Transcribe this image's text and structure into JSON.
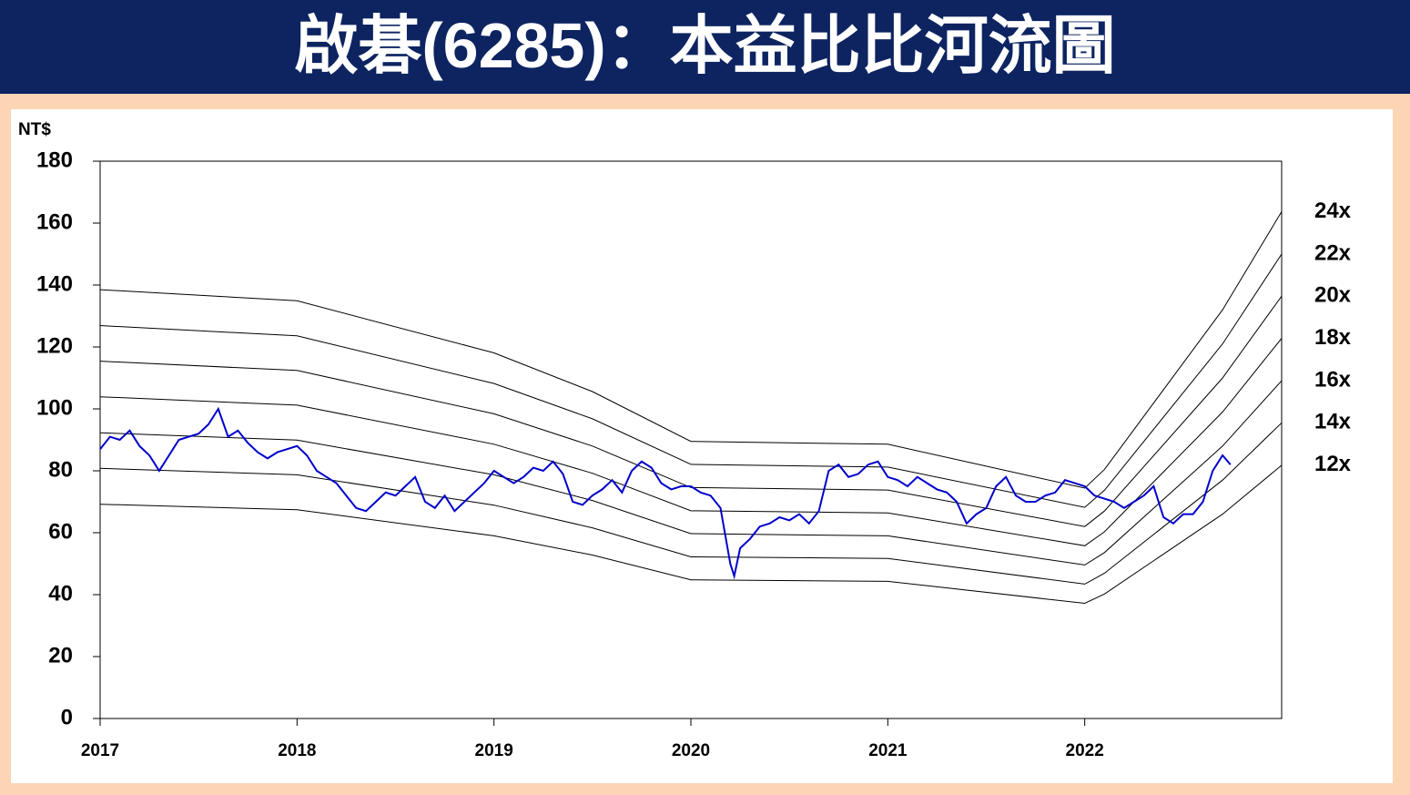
{
  "chart_data": {
    "type": "line",
    "title": "啟碁(6285)：本益比比河流圖",
    "y_label": "NT$",
    "xlim": [
      2017,
      2023
    ],
    "xticks": [
      2017,
      2018,
      2019,
      2020,
      2021,
      2022
    ],
    "ylim": [
      0,
      180
    ],
    "yticks": [
      0,
      20,
      40,
      60,
      80,
      100,
      120,
      140,
      160,
      180
    ],
    "series": [
      {
        "name": "24x",
        "color": "#000000",
        "x": [
          2017,
          2018,
          2019,
          2019.5,
          2020,
          2021,
          2022,
          2022.1,
          2022.7,
          2023
        ],
        "values": [
          138.5,
          134.9,
          118.1,
          105.6,
          89.5,
          88.6,
          74.4,
          80.4,
          132.0,
          163.7
        ]
      },
      {
        "name": "22x",
        "color": "#000000",
        "x": [
          2017,
          2018,
          2019,
          2019.5,
          2020,
          2021,
          2022,
          2022.1,
          2022.7,
          2023
        ],
        "values": [
          126.9,
          123.6,
          108.2,
          96.8,
          82.1,
          81.2,
          68.2,
          73.7,
          121.0,
          150.0
        ]
      },
      {
        "name": "20x",
        "color": "#000000",
        "x": [
          2017,
          2018,
          2019,
          2019.5,
          2020,
          2021,
          2022,
          2022.1,
          2022.7,
          2023
        ],
        "values": [
          115.4,
          112.4,
          98.4,
          88.0,
          74.6,
          73.8,
          62.0,
          67.0,
          110.0,
          136.4
        ]
      },
      {
        "name": "18x",
        "color": "#000000",
        "x": [
          2017,
          2018,
          2019,
          2019.5,
          2020,
          2021,
          2022,
          2022.1,
          2022.7,
          2023
        ],
        "values": [
          103.9,
          101.2,
          88.6,
          79.2,
          67.1,
          66.4,
          55.8,
          60.3,
          99.0,
          122.8
        ]
      },
      {
        "name": "16x",
        "color": "#000000",
        "x": [
          2017,
          2018,
          2019,
          2019.5,
          2020,
          2021,
          2022,
          2022.1,
          2022.7,
          2023
        ],
        "values": [
          92.3,
          89.9,
          78.7,
          70.4,
          59.7,
          59.0,
          49.6,
          53.6,
          88.0,
          109.1
        ]
      },
      {
        "name": "14x",
        "color": "#000000",
        "x": [
          2017,
          2018,
          2019,
          2019.5,
          2020,
          2021,
          2022,
          2022.1,
          2022.7,
          2023
        ],
        "values": [
          80.8,
          78.7,
          68.9,
          61.6,
          52.2,
          51.7,
          43.4,
          46.9,
          77.0,
          95.5
        ]
      },
      {
        "name": "12x",
        "color": "#000000",
        "x": [
          2017,
          2018,
          2019,
          2019.5,
          2020,
          2021,
          2022,
          2022.1,
          2022.7,
          2023
        ],
        "values": [
          69.2,
          67.4,
          59.0,
          52.8,
          44.8,
          44.3,
          37.2,
          40.2,
          66.0,
          81.8
        ]
      },
      {
        "color": "#0000cc",
        "x": [
          2017.0,
          2017.05,
          2017.1,
          2017.15,
          2017.2,
          2017.25,
          2017.3,
          2017.35,
          2017.4,
          2017.45,
          2017.5,
          2017.55,
          2017.6,
          2017.65,
          2017.7,
          2017.75,
          2017.8,
          2017.85,
          2017.9,
          2017.95,
          2018.0,
          2018.05,
          2018.1,
          2018.15,
          2018.2,
          2018.25,
          2018.3,
          2018.35,
          2018.4,
          2018.45,
          2018.5,
          2018.55,
          2018.6,
          2018.65,
          2018.7,
          2018.75,
          2018.8,
          2018.85,
          2018.9,
          2018.95,
          2019.0,
          2019.05,
          2019.1,
          2019.15,
          2019.2,
          2019.25,
          2019.3,
          2019.35,
          2019.4,
          2019.45,
          2019.5,
          2019.55,
          2019.6,
          2019.65,
          2019.7,
          2019.75,
          2019.8,
          2019.85,
          2019.9,
          2019.95,
          2020.0,
          2020.05,
          2020.1,
          2020.15,
          2020.2,
          2020.22,
          2020.25,
          2020.3,
          2020.35,
          2020.4,
          2020.45,
          2020.5,
          2020.55,
          2020.6,
          2020.65,
          2020.7,
          2020.75,
          2020.8,
          2020.85,
          2020.9,
          2020.95,
          2021.0,
          2021.05,
          2021.1,
          2021.15,
          2021.2,
          2021.25,
          2021.3,
          2021.35,
          2021.4,
          2021.45,
          2021.5,
          2021.55,
          2021.6,
          2021.65,
          2021.7,
          2021.75,
          2021.8,
          2021.85,
          2021.9,
          2021.95,
          2022.0,
          2022.05,
          2022.1,
          2022.15,
          2022.2,
          2022.25,
          2022.3,
          2022.35,
          2022.4,
          2022.45,
          2022.5,
          2022.55,
          2022.6,
          2022.65,
          2022.7,
          2022.74
        ],
        "values": [
          87,
          91,
          90,
          93,
          88,
          85,
          80,
          85,
          90,
          91,
          92,
          95,
          100,
          91,
          93,
          89,
          86,
          84,
          86,
          87,
          88,
          85,
          80,
          78,
          76,
          72,
          68,
          67,
          70,
          73,
          72,
          75,
          78,
          70,
          68,
          72,
          67,
          70,
          73,
          76,
          80,
          78,
          76,
          78,
          81,
          80,
          83,
          79,
          70,
          69,
          72,
          74,
          77,
          73,
          80,
          83,
          81,
          76,
          74,
          75,
          75,
          73,
          72,
          68,
          50,
          46,
          55,
          58,
          62,
          63,
          65,
          64,
          66,
          63,
          67,
          80,
          82,
          78,
          79,
          82,
          83,
          78,
          77,
          75,
          78,
          76,
          74,
          73,
          70,
          63,
          66,
          68,
          75,
          78,
          72,
          70,
          70,
          72,
          73,
          77,
          76,
          75,
          72,
          71,
          70,
          68,
          70,
          72,
          75,
          65,
          63,
          66,
          66,
          70,
          80,
          85,
          82
        ]
      }
    ]
  }
}
